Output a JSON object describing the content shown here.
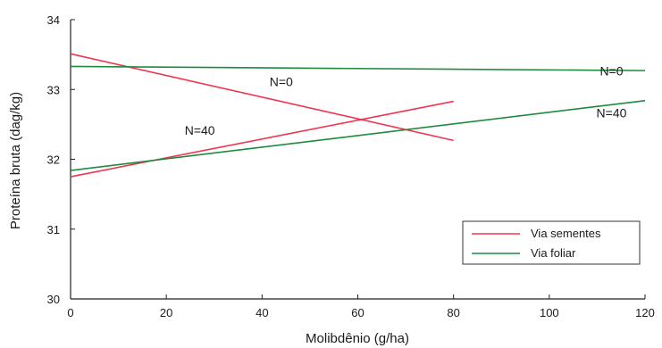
{
  "chart_data": {
    "type": "line",
    "xlabel": "Molibdênio (g/ha)",
    "ylabel": "Proteína bruta (dag/kg)",
    "xlim": [
      0,
      120
    ],
    "ylim": [
      30,
      34
    ],
    "xticks": [
      0,
      20,
      40,
      60,
      80,
      100,
      120
    ],
    "yticks": [
      30,
      31,
      32,
      33,
      34
    ],
    "grid": false,
    "legend_position": "bottom-right",
    "series": [
      {
        "name": "Via sementes",
        "group": "N=0",
        "color": "#f0334f",
        "x": [
          0,
          80
        ],
        "y": [
          33.51,
          32.27
        ]
      },
      {
        "name": "Via sementes",
        "group": "N=40",
        "color": "#f0334f",
        "x": [
          0,
          80
        ],
        "y": [
          31.75,
          32.83
        ]
      },
      {
        "name": "Via foliar",
        "group": "N=0",
        "color": "#1f8a3c",
        "x": [
          0,
          120
        ],
        "y": [
          33.33,
          33.27
        ]
      },
      {
        "name": "Via foliar",
        "group": "N=40",
        "color": "#1f8a3c",
        "x": [
          0,
          120
        ],
        "y": [
          31.84,
          32.84
        ]
      }
    ],
    "annotations": [
      {
        "text": "N=0",
        "x": 44,
        "y": 33.05
      },
      {
        "text": "N=40",
        "x": 27,
        "y": 32.35
      },
      {
        "text": "N=0",
        "x": 113,
        "y": 33.2
      },
      {
        "text": "N=40",
        "x": 113,
        "y": 32.6
      }
    ],
    "legend": [
      {
        "label": "Via sementes",
        "color": "#f0334f"
      },
      {
        "label": "Via foliar",
        "color": "#1f8a3c"
      }
    ]
  }
}
